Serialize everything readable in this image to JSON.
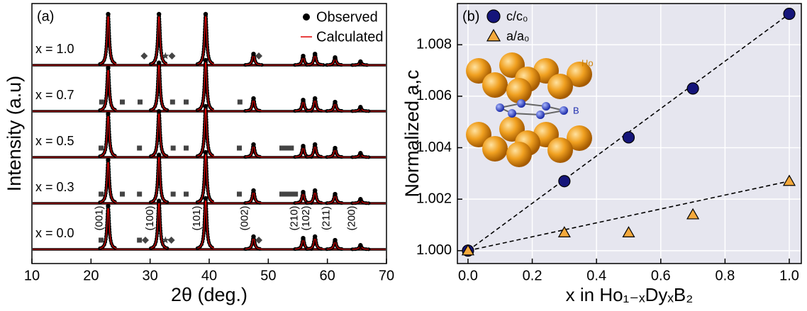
{
  "chart_data": [
    {
      "type": "xrd",
      "label": "(a)",
      "xlabel": "2θ (deg.)",
      "ylabel": "Intensity (a.u)",
      "xlim": [
        10,
        70
      ],
      "xticks": [
        10,
        20,
        30,
        40,
        50,
        60,
        70
      ],
      "legend": [
        {
          "name": "Observed",
          "color": "#000000"
        },
        {
          "name": "Calculated",
          "color": "#e00000"
        }
      ],
      "peaks": [
        22.9,
        31.5,
        39.4,
        47.5,
        55.9,
        57.9,
        61.3,
        65.6
      ],
      "peak_labels": [
        "(001)",
        "(100)",
        "(101)",
        "(002)",
        "(210)",
        "(102)",
        "(211)",
        "(200)"
      ],
      "patterns": [
        {
          "name": "x = 1.0",
          "values": [
            100,
            100,
            100,
            22,
            18,
            22,
            15,
            7
          ],
          "squares": [],
          "diamonds": [
            29.0,
            33.7,
            48.4
          ],
          "stars": [
            32.6
          ]
        },
        {
          "name": "x = 0.7",
          "values": [
            85,
            95,
            100,
            25,
            22,
            25,
            18,
            8
          ],
          "squares": [
            21.8,
            25.3,
            28.3,
            33.8,
            36.1,
            45.2
          ],
          "diamonds": [],
          "stars": []
        },
        {
          "name": "x = 0.5",
          "values": [
            85,
            90,
            100,
            25,
            22,
            25,
            18,
            8
          ],
          "squares": [
            21.7,
            28.2,
            33.9,
            36.1,
            45.1,
            52.3,
            53.1,
            53.9
          ],
          "diamonds": [],
          "stars": []
        },
        {
          "name": "x = 0.3",
          "values": [
            85,
            95,
            100,
            25,
            22,
            25,
            18,
            8
          ],
          "squares": [
            21.7,
            25.3,
            28.2,
            33.9,
            36.1,
            45.1,
            52.3,
            53.1,
            53.9,
            54.6
          ],
          "diamonds": [],
          "stars": []
        },
        {
          "name": "x = 0.0",
          "values": [
            85,
            95,
            100,
            25,
            22,
            25,
            18,
            8
          ],
          "squares": [
            21.7,
            28.2
          ],
          "diamonds": [
            29.2,
            33.6,
            48.4
          ],
          "stars": [
            32.6
          ]
        }
      ]
    },
    {
      "type": "scatter",
      "label": "(b)",
      "xlabel": "x in Ho₁₋ₓDyₓB₂",
      "ylabel": "Normalized a,c",
      "xlim": [
        -0.033,
        1.0375
      ],
      "ylim": [
        0.9995,
        1.0096
      ],
      "xticks": [
        {
          "value": 0,
          "label": "0.0"
        },
        0.2,
        0.4,
        0.6,
        0.8,
        {
          "value": 1,
          "label": "1.0"
        }
      ],
      "yticks": [
        {
          "value": 1,
          "label": "1.000"
        },
        1.002,
        1.004,
        1.006,
        1.008
      ],
      "grid": true,
      "background": "#e6e6ef",
      "series": [
        {
          "name": "c/c₀",
          "color": "#15157a",
          "marker": "circle",
          "x": [
            0,
            0.3,
            0.5,
            0.7,
            1
          ],
          "values": [
            1.0,
            1.0027,
            1.0044,
            1.0063,
            1.0092
          ]
        },
        {
          "name": "a/a₀",
          "color": "#f4a93c",
          "marker": "triangle",
          "x": [
            0,
            0.3,
            0.5,
            0.7,
            1
          ],
          "values": [
            1.0,
            1.0007,
            1.0007,
            1.0014,
            1.0027
          ]
        }
      ],
      "fits": [
        {
          "x": [
            0,
            1
          ],
          "values": [
            1.0,
            1.0092
          ]
        },
        {
          "x": [
            0,
            1
          ],
          "values": [
            1.0,
            1.0027
          ]
        }
      ],
      "inset_labels": [
        "Ho",
        "B"
      ]
    }
  ]
}
